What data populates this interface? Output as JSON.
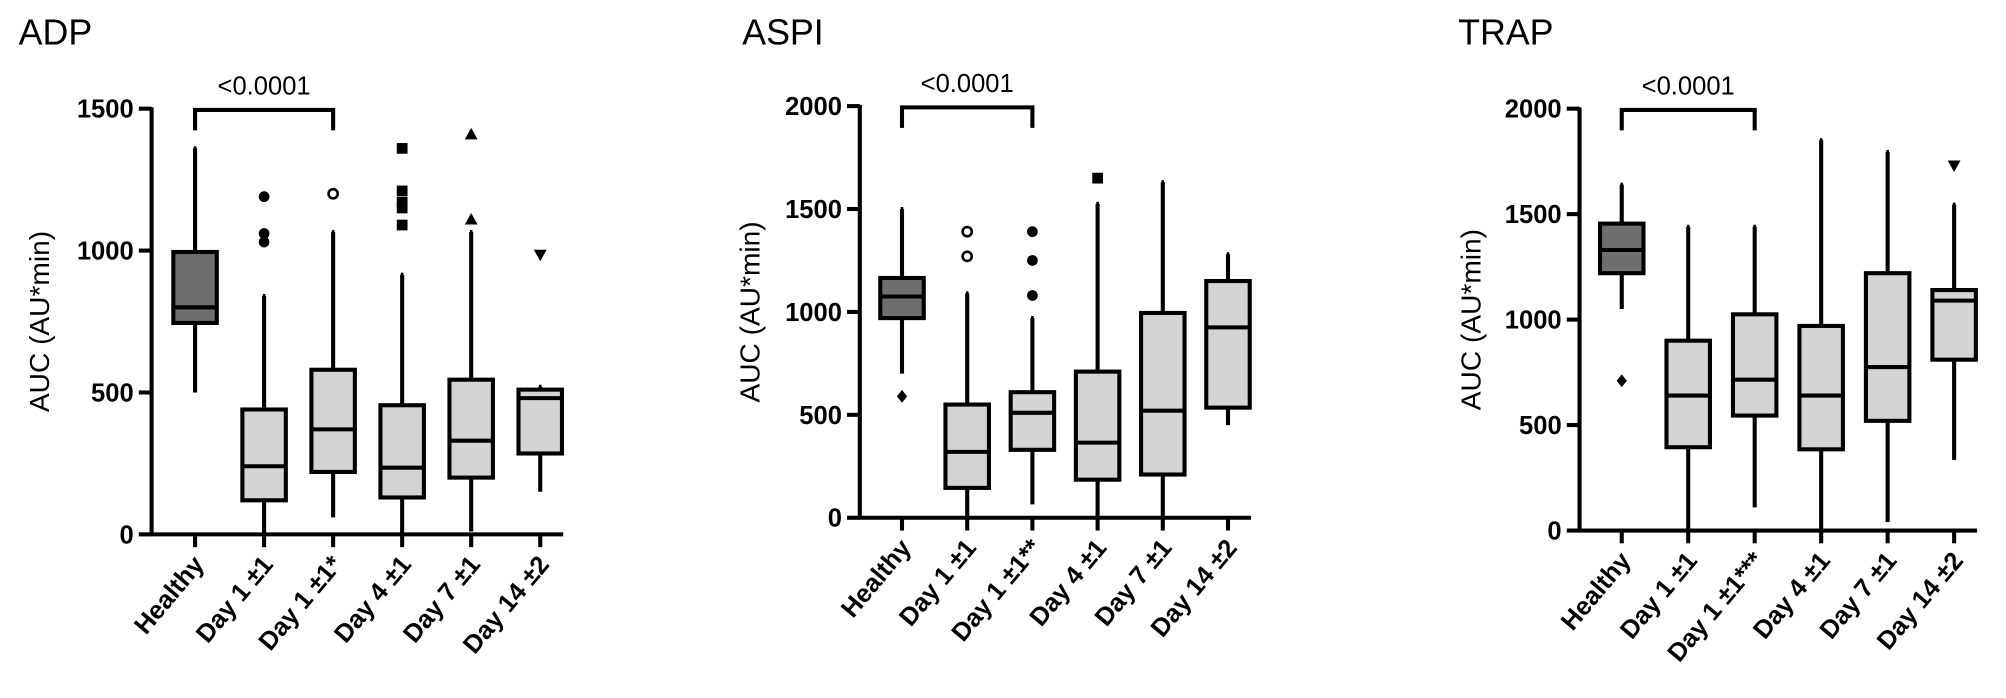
{
  "chart_data": [
    {
      "type": "box",
      "title": "ADP",
      "ylabel": "AUC (AU*min)",
      "annotation": "<0.0001",
      "ylim": [
        0,
        1500
      ],
      "yticks": [
        0,
        500,
        1000,
        1500
      ],
      "categories": [
        "Healthy",
        "Day 1 ±1",
        "Day 1 ±1*",
        "Day 4 ±1",
        "Day 7 ±1",
        "Day 14 ±2"
      ],
      "boxes": [
        {
          "whislo": 500,
          "q1": 745,
          "med": 800,
          "q3": 995,
          "whishi": 1360,
          "color": "#6e6e6e"
        },
        {
          "whislo": 0,
          "q1": 120,
          "med": 240,
          "q3": 440,
          "whishi": 840,
          "color": "#d4d4d4",
          "fliers": [
            1190,
            1060,
            1030
          ],
          "marker": "circle"
        },
        {
          "whislo": 60,
          "q1": 220,
          "med": 370,
          "q3": 580,
          "whishi": 1065,
          "color": "#d4d4d4",
          "fliers": [
            1200
          ],
          "marker": "open-circle"
        },
        {
          "whislo": 0,
          "q1": 130,
          "med": 235,
          "q3": 455,
          "whishi": 915,
          "color": "#d4d4d4",
          "fliers": [
            1360,
            1210,
            1170,
            1150,
            1090
          ],
          "marker": "square"
        },
        {
          "whislo": 10,
          "q1": 200,
          "med": 330,
          "q3": 545,
          "whishi": 1065,
          "color": "#d4d4d4",
          "fliers": [
            1410,
            1110
          ],
          "marker": "triangle-up"
        },
        {
          "whislo": 150,
          "q1": 285,
          "med": 480,
          "q3": 510,
          "whishi": 520,
          "color": "#d4d4d4",
          "fliers": [
            985
          ],
          "marker": "triangle-down"
        }
      ]
    },
    {
      "type": "box",
      "title": "ASPI",
      "ylabel": "AUC (AU*min)",
      "annotation": "<0.0001",
      "ylim": [
        0,
        2000
      ],
      "yticks": [
        0,
        500,
        1000,
        1500,
        2000
      ],
      "categories": [
        "Healthy",
        "Day 1 ±1",
        "Day 1 ±1**",
        "Day 4 ±1",
        "Day 7 ±1",
        "Day 14 ±2"
      ],
      "boxes": [
        {
          "whislo": 700,
          "q1": 970,
          "med": 1075,
          "q3": 1165,
          "whishi": 1500,
          "color": "#6e6e6e",
          "fliers": [
            590
          ],
          "marker": "diamond"
        },
        {
          "whislo": 0,
          "q1": 145,
          "med": 320,
          "q3": 550,
          "whishi": 1090,
          "color": "#d4d4d4",
          "fliers": [
            1390,
            1270
          ],
          "marker": "open-circle"
        },
        {
          "whislo": 65,
          "q1": 330,
          "med": 510,
          "q3": 610,
          "whishi": 970,
          "color": "#d4d4d4",
          "fliers": [
            1390,
            1250,
            1080
          ],
          "marker": "circle"
        },
        {
          "whislo": 5,
          "q1": 185,
          "med": 365,
          "q3": 710,
          "whishi": 1525,
          "color": "#d4d4d4",
          "fliers": [
            1650
          ],
          "marker": "square"
        },
        {
          "whislo": 5,
          "q1": 210,
          "med": 520,
          "q3": 995,
          "whishi": 1630,
          "color": "#d4d4d4"
        },
        {
          "whislo": 450,
          "q1": 535,
          "med": 925,
          "q3": 1150,
          "whishi": 1280,
          "color": "#d4d4d4"
        }
      ]
    },
    {
      "type": "box",
      "title": "TRAP",
      "ylabel": "AUC (AU*min)",
      "annotation": "<0.0001",
      "ylim": [
        0,
        2000
      ],
      "yticks": [
        0,
        500,
        1000,
        1500,
        2000
      ],
      "categories": [
        "Healthy",
        "Day 1 ±1",
        "Day 1 ±1***",
        "Day 4 ±1",
        "Day 7 ±1",
        "Day 14 ±2"
      ],
      "boxes": [
        {
          "whislo": 1050,
          "q1": 1220,
          "med": 1330,
          "q3": 1455,
          "whishi": 1640,
          "color": "#6e6e6e",
          "fliers": [
            710
          ],
          "marker": "diamond"
        },
        {
          "whislo": 0,
          "q1": 395,
          "med": 640,
          "q3": 900,
          "whishi": 1440,
          "color": "#d4d4d4"
        },
        {
          "whislo": 110,
          "q1": 545,
          "med": 715,
          "q3": 1025,
          "whishi": 1440,
          "color": "#d4d4d4"
        },
        {
          "whislo": 0,
          "q1": 385,
          "med": 640,
          "q3": 970,
          "whishi": 1850,
          "color": "#d4d4d4"
        },
        {
          "whislo": 40,
          "q1": 520,
          "med": 775,
          "q3": 1220,
          "whishi": 1795,
          "color": "#d4d4d4"
        },
        {
          "whislo": 335,
          "q1": 810,
          "med": 1090,
          "q3": 1140,
          "whishi": 1545,
          "color": "#d4d4d4",
          "fliers": [
            1730
          ],
          "marker": "triangle-down"
        }
      ]
    }
  ]
}
